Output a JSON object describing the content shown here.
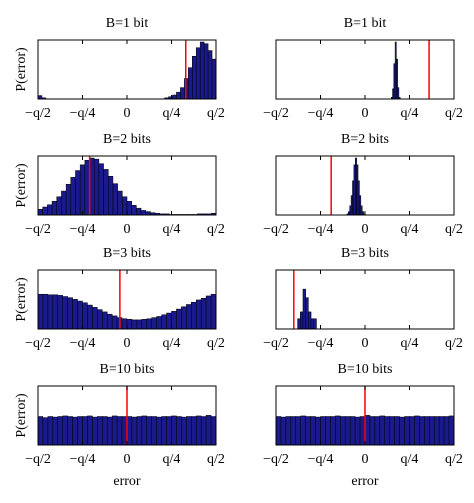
{
  "figure": {
    "ylabel": "P(error)",
    "xlabel": "error",
    "xtick_labels": [
      "−q/2",
      "−q/4",
      "0",
      "q/4",
      "q/2"
    ]
  },
  "colors": {
    "bar_fill": "#1a1a8c",
    "bar_edge": "#000000",
    "marker_line": "#ff0000",
    "axes": "#000000"
  },
  "chart_data": [
    {
      "type": "bar",
      "title": "B=1 bit",
      "xlim": [
        -0.5,
        0.5
      ],
      "x_units": "q",
      "marker_x": 0.33,
      "values": [
        0.06,
        0.02,
        0.0,
        0.0,
        0.0,
        0.0,
        0.0,
        0.0,
        0.0,
        0.0,
        0.0,
        0.0,
        0.0,
        0.0,
        0.0,
        0.0,
        0.0,
        0.0,
        0.0,
        0.0,
        0.0,
        0.0,
        0.0,
        0.0,
        0.0,
        0.0,
        0.0,
        0.0,
        0.0,
        0.0,
        0.0,
        0.0,
        0.02,
        0.04,
        0.07,
        0.12,
        0.2,
        0.36,
        0.55,
        0.75,
        0.9,
        1.0,
        0.97,
        0.85,
        0.7
      ]
    },
    {
      "type": "bar",
      "title": "B=1 bit",
      "xlim": [
        -0.5,
        0.5
      ],
      "x_units": "q",
      "marker_x": 0.36,
      "values": [
        0,
        0,
        0,
        0,
        0,
        0,
        0,
        0,
        0,
        0,
        0,
        0,
        0,
        0,
        0,
        0,
        0,
        0,
        0,
        0,
        0,
        0,
        0,
        0,
        0,
        0,
        0,
        0,
        0,
        0,
        0,
        0,
        0,
        0,
        0,
        0,
        0,
        0,
        0,
        0,
        0,
        0,
        0,
        0,
        0,
        0,
        0,
        0,
        0,
        0,
        0,
        0,
        0,
        0,
        0,
        0,
        0,
        0,
        0,
        0,
        0,
        0,
        0,
        0,
        0,
        0,
        0,
        0,
        0,
        0,
        0,
        0,
        0,
        0,
        0,
        0,
        0,
        0,
        0,
        0,
        0,
        0,
        0,
        0,
        0,
        0,
        0,
        0,
        0,
        0,
        0.03,
        0.18,
        0.62,
        1.0,
        0.7,
        0.2,
        0.03,
        0,
        0,
        0,
        0,
        0,
        0,
        0,
        0,
        0,
        0,
        0,
        0,
        0,
        0,
        0,
        0,
        0,
        0,
        0,
        0,
        0,
        0,
        0,
        0,
        0,
        0,
        0,
        0,
        0,
        0,
        0,
        0,
        0,
        0,
        0,
        0,
        0,
        0,
        0,
        0,
        0,
        0
      ]
    },
    {
      "type": "bar",
      "title": "B=2 bits",
      "xlim": [
        -0.5,
        0.5
      ],
      "x_units": "q",
      "marker_x": -0.21,
      "values": [
        0.1,
        0.14,
        0.18,
        0.24,
        0.32,
        0.42,
        0.54,
        0.66,
        0.78,
        0.88,
        0.96,
        1.0,
        0.98,
        0.9,
        0.8,
        0.68,
        0.55,
        0.42,
        0.32,
        0.24,
        0.17,
        0.12,
        0.08,
        0.06,
        0.04,
        0.03,
        0.02,
        0.02,
        0.01,
        0.01,
        0.01,
        0.01,
        0.01,
        0.01,
        0.02,
        0.02,
        0.02,
        0.03
      ]
    },
    {
      "type": "bar",
      "title": "B=2 bits",
      "xlim": [
        -0.5,
        0.5
      ],
      "x_units": "q",
      "marker_x": -0.19,
      "values": [
        0,
        0,
        0,
        0,
        0,
        0,
        0,
        0,
        0,
        0,
        0,
        0,
        0,
        0,
        0,
        0,
        0,
        0,
        0,
        0,
        0,
        0,
        0,
        0,
        0,
        0,
        0,
        0,
        0,
        0,
        0,
        0,
        0,
        0,
        0,
        0,
        0,
        0,
        0,
        0,
        0,
        0,
        0,
        0,
        0,
        0,
        0,
        0,
        0,
        0,
        0,
        0.02,
        0.06,
        0.16,
        0.34,
        0.6,
        0.88,
        1.0,
        0.88,
        0.6,
        0.34,
        0.16,
        0.06,
        0.02,
        0,
        0,
        0,
        0,
        0,
        0,
        0,
        0,
        0,
        0,
        0,
        0,
        0,
        0,
        0,
        0,
        0,
        0,
        0,
        0,
        0,
        0,
        0,
        0,
        0,
        0,
        0,
        0,
        0,
        0,
        0,
        0,
        0,
        0,
        0,
        0,
        0,
        0,
        0,
        0,
        0,
        0,
        0,
        0,
        0,
        0,
        0,
        0,
        0,
        0,
        0,
        0,
        0,
        0,
        0,
        0,
        0,
        0,
        0,
        0,
        0,
        0,
        0,
        0
      ]
    },
    {
      "type": "bar",
      "title": "B=3 bits",
      "xlim": [
        -0.5,
        0.5
      ],
      "x_units": "q",
      "marker_x": -0.04,
      "values": [
        0.61,
        0.61,
        0.6,
        0.6,
        0.59,
        0.57,
        0.55,
        0.52,
        0.49,
        0.46,
        0.42,
        0.38,
        0.34,
        0.3,
        0.26,
        0.23,
        0.2,
        0.18,
        0.17,
        0.16,
        0.16,
        0.17,
        0.18,
        0.2,
        0.22,
        0.25,
        0.28,
        0.31,
        0.35,
        0.39,
        0.43,
        0.47,
        0.51,
        0.54,
        0.58,
        0.61
      ]
    },
    {
      "type": "bar",
      "title": "B=3 bits",
      "xlim": [
        -0.5,
        0.5
      ],
      "x_units": "q",
      "marker_x": -0.4,
      "values": [
        0,
        0,
        0,
        0,
        0,
        0,
        0,
        0,
        0.18,
        0.3,
        0.7,
        0.55,
        0.3,
        0.18,
        0.18,
        0,
        0,
        0,
        0,
        0,
        0,
        0,
        0,
        0,
        0,
        0,
        0,
        0,
        0,
        0,
        0,
        0,
        0,
        0,
        0,
        0,
        0,
        0,
        0,
        0,
        0,
        0,
        0,
        0,
        0,
        0,
        0,
        0,
        0,
        0,
        0,
        0,
        0,
        0,
        0,
        0,
        0,
        0,
        0,
        0,
        0,
        0,
        0,
        0,
        0,
        0
      ]
    },
    {
      "type": "bar",
      "title": "B=10 bits",
      "xlim": [
        -0.5,
        0.5
      ],
      "x_units": "q",
      "marker_x": 0.0,
      "values": [
        0.5,
        0.48,
        0.5,
        0.49,
        0.5,
        0.51,
        0.5,
        0.49,
        0.5,
        0.5,
        0.51,
        0.49,
        0.5,
        0.5,
        0.49,
        0.51,
        0.5,
        0.5,
        0.5,
        0.49,
        0.5,
        0.51,
        0.5,
        0.5,
        0.49,
        0.5,
        0.5,
        0.51,
        0.5,
        0.49,
        0.5,
        0.5,
        0.51,
        0.5,
        0.52,
        0.5
      ]
    },
    {
      "type": "bar",
      "title": "B=10 bits",
      "xlim": [
        -0.5,
        0.5
      ],
      "x_units": "q",
      "marker_x": 0.0,
      "values": [
        0.5,
        0.49,
        0.5,
        0.5,
        0.5,
        0.51,
        0.5,
        0.5,
        0.49,
        0.5,
        0.5,
        0.5,
        0.51,
        0.5,
        0.5,
        0.5,
        0.49,
        0.5,
        0.52,
        0.5,
        0.5,
        0.51,
        0.5,
        0.5,
        0.5,
        0.49,
        0.5,
        0.5,
        0.51,
        0.5,
        0.5,
        0.5,
        0.5,
        0.5,
        0.5,
        0.51
      ]
    }
  ]
}
